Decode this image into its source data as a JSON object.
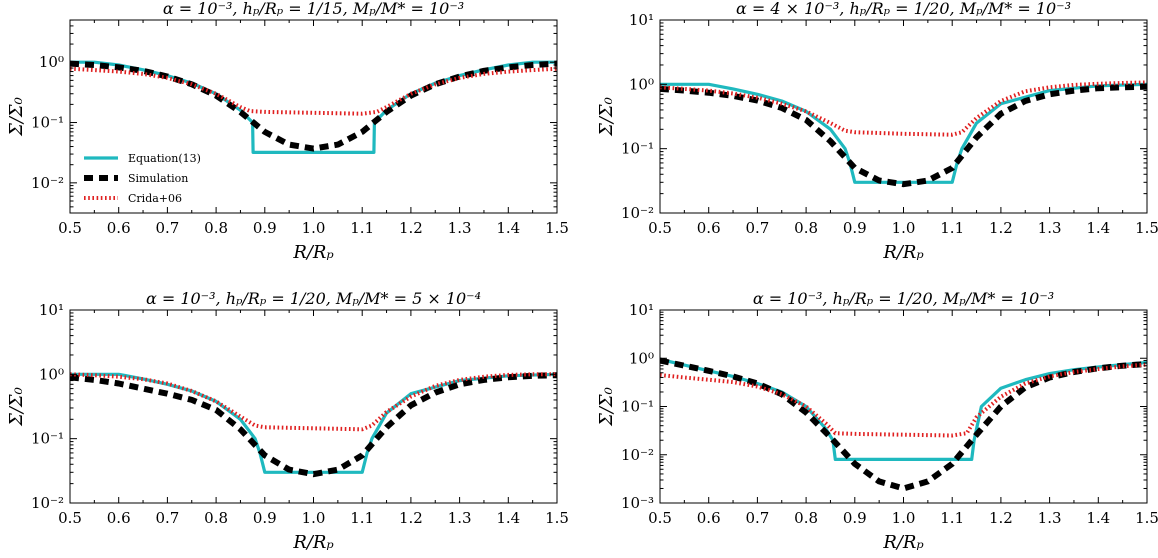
{
  "colors": {
    "equation": "#1fb9bf",
    "simulation": "#000000",
    "crida": "#e02020"
  },
  "chart_data": [
    {
      "type": "line",
      "title": "α = 10⁻³, hₚ/Rₚ = 1/15, Mₚ/M* = 10⁻³",
      "xlabel": "R/Rₚ",
      "ylabel": "Σ/Σ₀",
      "xlim": [
        0.5,
        1.5
      ],
      "ylim_exp": [
        -2.5,
        0.7
      ],
      "log_y": true,
      "xticks": [
        "0.5",
        "0.6",
        "0.7",
        "0.8",
        "0.9",
        "1.0",
        "1.1",
        "1.2",
        "1.3",
        "1.4",
        "1.5"
      ],
      "yticks": [
        {
          "exp": -2,
          "label": "10⁻²"
        },
        {
          "exp": -1,
          "label": "10⁻¹"
        },
        {
          "exp": 0,
          "label": "10⁰"
        }
      ],
      "legend": {
        "placement": "center-left",
        "entries": [
          "Equation(13)",
          "Simulation",
          "Crida+06"
        ]
      },
      "series": [
        {
          "name": "Equation(13)",
          "style": "solid",
          "x": [
            0.5,
            0.55,
            0.6,
            0.65,
            0.7,
            0.75,
            0.8,
            0.85,
            0.875,
            0.876,
            1.124,
            1.125,
            1.15,
            1.2,
            1.25,
            1.3,
            1.35,
            1.4,
            1.45,
            1.5
          ],
          "y": [
            1.0,
            1.0,
            0.9,
            0.75,
            0.6,
            0.45,
            0.3,
            0.16,
            0.1,
            0.032,
            0.032,
            0.1,
            0.16,
            0.3,
            0.45,
            0.6,
            0.75,
            0.9,
            1.0,
            1.0
          ]
        },
        {
          "name": "Simulation",
          "style": "dashed",
          "x": [
            0.5,
            0.55,
            0.6,
            0.65,
            0.7,
            0.75,
            0.8,
            0.85,
            0.9,
            0.95,
            1.0,
            1.05,
            1.1,
            1.15,
            1.2,
            1.25,
            1.3,
            1.35,
            1.4,
            1.45,
            1.5
          ],
          "y": [
            0.95,
            0.9,
            0.82,
            0.72,
            0.58,
            0.43,
            0.28,
            0.15,
            0.07,
            0.043,
            0.037,
            0.043,
            0.07,
            0.15,
            0.28,
            0.43,
            0.58,
            0.72,
            0.82,
            0.9,
            0.95
          ]
        },
        {
          "name": "Crida+06",
          "style": "dotted",
          "x": [
            0.5,
            0.55,
            0.6,
            0.65,
            0.7,
            0.75,
            0.8,
            0.85,
            0.87,
            0.9,
            1.0,
            1.1,
            1.13,
            1.15,
            1.2,
            1.25,
            1.3,
            1.35,
            1.4,
            1.45,
            1.5
          ],
          "y": [
            0.78,
            0.74,
            0.7,
            0.64,
            0.55,
            0.43,
            0.3,
            0.18,
            0.155,
            0.15,
            0.145,
            0.14,
            0.15,
            0.18,
            0.3,
            0.43,
            0.55,
            0.64,
            0.7,
            0.74,
            0.78
          ]
        }
      ]
    },
    {
      "type": "line",
      "title": "α = 4 × 10⁻³, hₚ/Rₚ = 1/20, Mₚ/M* = 10⁻³",
      "xlabel": "R/Rₚ",
      "ylabel": "Σ/Σ₀",
      "xlim": [
        0.5,
        1.5
      ],
      "ylim_exp": [
        -2,
        1
      ],
      "log_y": true,
      "xticks": [
        "0.5",
        "0.6",
        "0.7",
        "0.8",
        "0.9",
        "1.0",
        "1.1",
        "1.2",
        "1.3",
        "1.4",
        "1.5"
      ],
      "yticks": [
        {
          "exp": -2,
          "label": "10⁻²"
        },
        {
          "exp": -1,
          "label": "10⁻¹"
        },
        {
          "exp": 0,
          "label": "10⁰"
        },
        {
          "exp": 1,
          "label": "10¹"
        }
      ],
      "series": [
        {
          "name": "Equation(13)",
          "style": "solid",
          "x": [
            0.5,
            0.6,
            0.65,
            0.7,
            0.75,
            0.8,
            0.85,
            0.88,
            0.89,
            0.9,
            1.1,
            1.11,
            1.12,
            1.15,
            1.2,
            1.3,
            1.4,
            1.5
          ],
          "y": [
            1.0,
            1.0,
            0.85,
            0.7,
            0.55,
            0.38,
            0.2,
            0.1,
            0.06,
            0.03,
            0.03,
            0.06,
            0.1,
            0.25,
            0.5,
            0.8,
            0.95,
            1.0
          ]
        },
        {
          "name": "Simulation",
          "style": "dashed",
          "x": [
            0.5,
            0.55,
            0.6,
            0.65,
            0.7,
            0.75,
            0.8,
            0.85,
            0.9,
            0.95,
            1.0,
            1.05,
            1.1,
            1.15,
            1.2,
            1.25,
            1.3,
            1.35,
            1.4,
            1.45,
            1.5
          ],
          "y": [
            0.85,
            0.8,
            0.74,
            0.66,
            0.56,
            0.43,
            0.28,
            0.13,
            0.05,
            0.032,
            0.028,
            0.032,
            0.05,
            0.15,
            0.35,
            0.55,
            0.7,
            0.8,
            0.87,
            0.9,
            0.92
          ]
        },
        {
          "name": "Crida+06",
          "style": "dotted",
          "x": [
            0.5,
            0.55,
            0.6,
            0.65,
            0.7,
            0.75,
            0.8,
            0.85,
            0.88,
            0.9,
            1.0,
            1.1,
            1.12,
            1.15,
            1.2,
            1.25,
            1.3,
            1.35,
            1.4,
            1.45,
            1.5
          ],
          "y": [
            0.9,
            0.85,
            0.8,
            0.72,
            0.62,
            0.5,
            0.38,
            0.25,
            0.19,
            0.18,
            0.17,
            0.165,
            0.18,
            0.3,
            0.55,
            0.78,
            0.9,
            0.98,
            1.02,
            1.05,
            1.07
          ]
        }
      ]
    },
    {
      "type": "line",
      "title": "α = 10⁻³, hₚ/Rₚ = 1/20, Mₚ/M* = 5 × 10⁻⁴",
      "xlabel": "R/Rₚ",
      "ylabel": "Σ/Σ₀",
      "xlim": [
        0.5,
        1.5
      ],
      "ylim_exp": [
        -2,
        1
      ],
      "log_y": true,
      "xticks": [
        "0.5",
        "0.6",
        "0.7",
        "0.8",
        "0.9",
        "1.0",
        "1.1",
        "1.2",
        "1.3",
        "1.4",
        "1.5"
      ],
      "yticks": [
        {
          "exp": -2,
          "label": "10⁻²"
        },
        {
          "exp": -1,
          "label": "10⁻¹"
        },
        {
          "exp": 0,
          "label": "10⁰"
        },
        {
          "exp": 1,
          "label": "10¹"
        }
      ],
      "series": [
        {
          "name": "Equation(13)",
          "style": "solid",
          "x": [
            0.5,
            0.6,
            0.65,
            0.7,
            0.75,
            0.8,
            0.85,
            0.88,
            0.89,
            0.9,
            1.1,
            1.11,
            1.12,
            1.15,
            1.2,
            1.3,
            1.4,
            1.5
          ],
          "y": [
            1.0,
            1.0,
            0.85,
            0.7,
            0.55,
            0.38,
            0.2,
            0.1,
            0.06,
            0.03,
            0.03,
            0.06,
            0.1,
            0.25,
            0.5,
            0.8,
            0.95,
            1.0
          ]
        },
        {
          "name": "Simulation",
          "style": "dashed",
          "x": [
            0.5,
            0.55,
            0.6,
            0.65,
            0.7,
            0.75,
            0.8,
            0.85,
            0.9,
            0.95,
            1.0,
            1.05,
            1.1,
            1.15,
            1.2,
            1.25,
            1.3,
            1.35,
            1.4,
            1.45,
            1.5
          ],
          "y": [
            0.9,
            0.82,
            0.72,
            0.6,
            0.5,
            0.4,
            0.28,
            0.14,
            0.055,
            0.033,
            0.028,
            0.033,
            0.055,
            0.15,
            0.33,
            0.52,
            0.7,
            0.82,
            0.9,
            0.95,
            0.97
          ]
        },
        {
          "name": "Crida+06",
          "style": "dotted",
          "x": [
            0.5,
            0.55,
            0.6,
            0.65,
            0.7,
            0.75,
            0.8,
            0.85,
            0.88,
            0.9,
            1.0,
            1.1,
            1.12,
            1.15,
            1.2,
            1.25,
            1.3,
            1.35,
            1.4,
            1.45,
            1.5
          ],
          "y": [
            1.0,
            0.97,
            0.92,
            0.84,
            0.72,
            0.55,
            0.38,
            0.22,
            0.16,
            0.15,
            0.145,
            0.14,
            0.16,
            0.26,
            0.45,
            0.66,
            0.82,
            0.92,
            0.98,
            1.0,
            1.0
          ]
        }
      ]
    },
    {
      "type": "line",
      "title": "α = 10⁻³, hₚ/Rₚ = 1/20, Mₚ/M* = 10⁻³",
      "xlabel": "R/Rₚ",
      "ylabel": "Σ/Σ₀",
      "xlim": [
        0.5,
        1.5
      ],
      "ylim_exp": [
        -3,
        1
      ],
      "log_y": true,
      "xticks": [
        "0.5",
        "0.6",
        "0.7",
        "0.8",
        "0.9",
        "1.0",
        "1.1",
        "1.2",
        "1.3",
        "1.4",
        "1.5"
      ],
      "yticks": [
        {
          "exp": -3,
          "label": "10⁻³"
        },
        {
          "exp": -2,
          "label": "10⁻²"
        },
        {
          "exp": -1,
          "label": "10⁻¹"
        },
        {
          "exp": 0,
          "label": "10⁰"
        },
        {
          "exp": 1,
          "label": "10¹"
        }
      ],
      "series": [
        {
          "name": "Equation(13)",
          "style": "solid",
          "x": [
            0.5,
            0.55,
            0.6,
            0.65,
            0.7,
            0.75,
            0.8,
            0.84,
            0.855,
            0.86,
            1.14,
            1.145,
            1.16,
            1.2,
            1.25,
            1.3,
            1.35,
            1.4,
            1.45,
            1.5
          ],
          "y": [
            0.95,
            0.72,
            0.55,
            0.42,
            0.3,
            0.2,
            0.1,
            0.035,
            0.02,
            0.008,
            0.008,
            0.02,
            0.1,
            0.24,
            0.36,
            0.48,
            0.58,
            0.66,
            0.74,
            0.82
          ]
        },
        {
          "name": "Simulation",
          "style": "dashed",
          "x": [
            0.5,
            0.55,
            0.6,
            0.65,
            0.7,
            0.75,
            0.8,
            0.85,
            0.9,
            0.95,
            1.0,
            1.05,
            1.1,
            1.15,
            1.2,
            1.25,
            1.3,
            1.35,
            1.4,
            1.45,
            1.5
          ],
          "y": [
            0.9,
            0.7,
            0.55,
            0.42,
            0.3,
            0.18,
            0.075,
            0.023,
            0.0065,
            0.0028,
            0.002,
            0.0028,
            0.0065,
            0.026,
            0.1,
            0.25,
            0.4,
            0.52,
            0.62,
            0.7,
            0.76
          ]
        },
        {
          "name": "Crida+06",
          "style": "dotted",
          "x": [
            0.5,
            0.55,
            0.6,
            0.65,
            0.7,
            0.75,
            0.8,
            0.84,
            0.86,
            0.9,
            1.0,
            1.1,
            1.13,
            1.15,
            1.2,
            1.25,
            1.3,
            1.35,
            1.4,
            1.45,
            1.5
          ],
          "y": [
            0.45,
            0.4,
            0.36,
            0.32,
            0.26,
            0.18,
            0.1,
            0.045,
            0.028,
            0.027,
            0.026,
            0.025,
            0.028,
            0.06,
            0.16,
            0.3,
            0.42,
            0.52,
            0.6,
            0.68,
            0.74
          ]
        }
      ]
    }
  ]
}
